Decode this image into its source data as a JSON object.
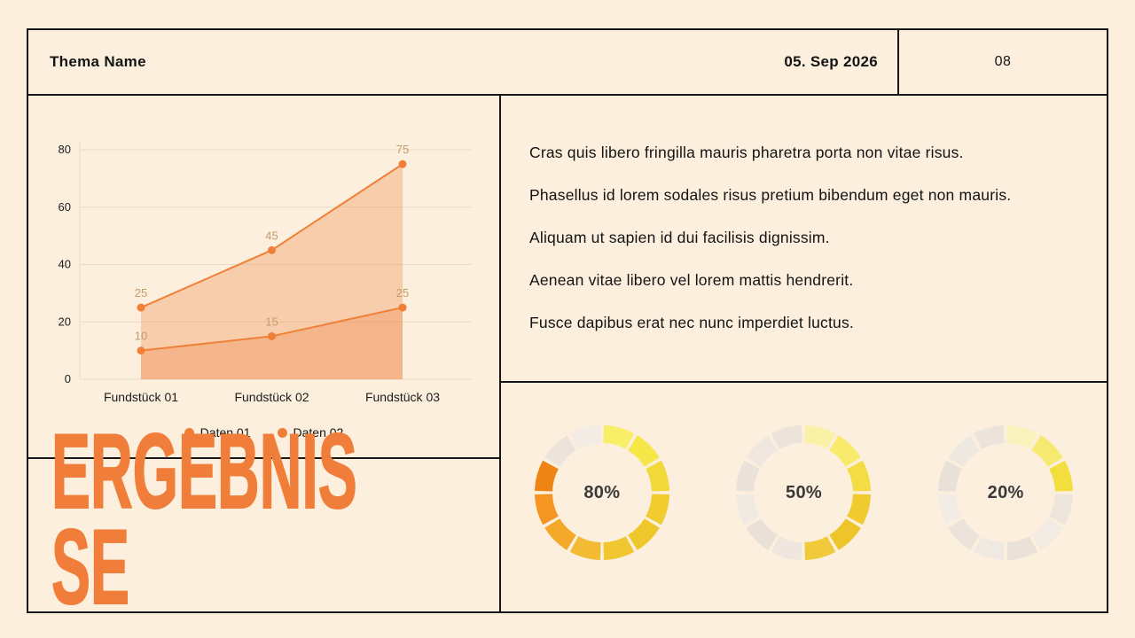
{
  "colors": {
    "background": "#fcefdd",
    "border": "#171717",
    "accent_orange": "#f07e3a",
    "chart_line": "#f08038",
    "chart_area": "rgba(240,126,58,0.30)",
    "chart_label": "#c49b6b",
    "gridline": "#e7dbc7"
  },
  "header": {
    "title": "Thema Name",
    "date": "05. Sep 2026",
    "page": "08"
  },
  "big_title": {
    "line1": "ERGEBNIS",
    "line2": "SE"
  },
  "paragraphs": [
    "Cras quis libero fringilla mauris pharetra porta non vitae risus.",
    "Phasellus id lorem sodales risus pretium bibendum eget non mauris.",
    "Aliquam ut sapien id dui facilisis dignissim.",
    "Aenean vitae libero vel lorem mattis hendrerit.",
    "Fusce dapibus erat nec nunc imperdiet luctus."
  ],
  "chart_data": [
    {
      "type": "area",
      "title": "",
      "categories": [
        "Fundstück 01",
        "Fundstück 02",
        "Fundstück 03"
      ],
      "series": [
        {
          "name": "Daten 01",
          "values": [
            25,
            45,
            75
          ]
        },
        {
          "name": "Daten 02",
          "values": [
            10,
            15,
            25
          ]
        }
      ],
      "ylim": [
        0,
        80
      ],
      "yticks": [
        0,
        20,
        40,
        60,
        80
      ],
      "grid": true,
      "legend_position": "bottom",
      "line_color": "#f08038",
      "area_color": "rgba(240,126,58,0.30)",
      "label_color": "#c49b6b"
    },
    {
      "type": "pie",
      "subtype": "segmented-donut",
      "value_label": "80%",
      "percent": 80,
      "segments": [
        "#f8ef68",
        "#f6e748",
        "#f2d93a",
        "#f0cc2e",
        "#efc62b",
        "#f0c731",
        "#f2bb33",
        "#f4a82a",
        "#f59522",
        "#ee8414",
        "#ece3da",
        "#f2ece4"
      ]
    },
    {
      "type": "pie",
      "subtype": "segmented-donut",
      "value_label": "50%",
      "percent": 50,
      "segments": [
        "#f9f2a6",
        "#f7ea6d",
        "#f3dc44",
        "#efcb2f",
        "#edc42a",
        "#f0ca3a",
        "#efe7df",
        "#e9e0d7",
        "#f1eae2",
        "#ebe2d9",
        "#f0e8e0",
        "#ece3da"
      ]
    },
    {
      "type": "pie",
      "subtype": "segmented-donut",
      "value_label": "20%",
      "percent": 20,
      "segments": [
        "#f8f2bd",
        "#f5e96f",
        "#f2df3e",
        "#eee5dc",
        "#f2ebe3",
        "#eae1d8",
        "#f0e9e1",
        "#ece3da",
        "#f3ece4",
        "#e9e0d7",
        "#efe8e0",
        "#ece4db"
      ]
    }
  ]
}
